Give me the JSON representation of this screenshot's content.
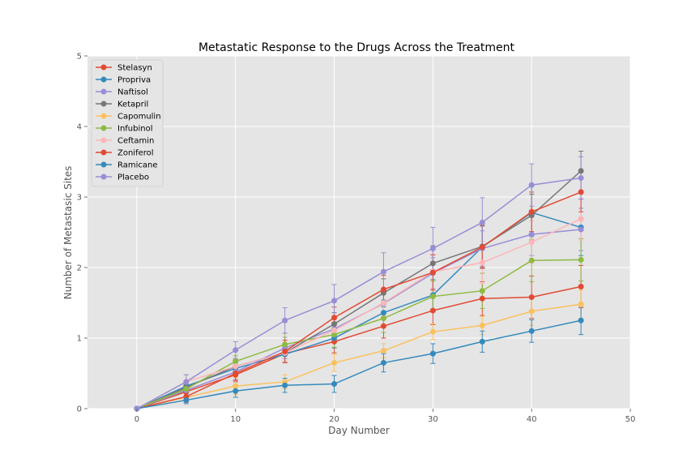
{
  "chart_data": {
    "type": "line",
    "title": "Metastatic Response to the Drugs Across the Treatment",
    "xlabel": "Day Number",
    "ylabel": "Number of Metastasic Sites",
    "xlim": [
      -5,
      50
    ],
    "ylim": [
      0,
      5
    ],
    "xticks": [
      0,
      10,
      20,
      30,
      40,
      50
    ],
    "yticks": [
      0,
      1,
      2,
      3,
      4,
      5
    ],
    "grid": true,
    "legend_position": "top-left",
    "x": [
      0,
      5,
      10,
      15,
      20,
      25,
      30,
      35,
      40,
      45
    ],
    "series": [
      {
        "name": "Stelasyn",
        "color": "#e24a33",
        "values": [
          0,
          0.24,
          0.48,
          0.78,
          0.95,
          1.17,
          1.39,
          1.56,
          1.58,
          1.73
        ],
        "errors": [
          0,
          0.09,
          0.1,
          0.13,
          0.16,
          0.17,
          0.2,
          0.24,
          0.3,
          0.3
        ]
      },
      {
        "name": "Propriva",
        "color": "#348abd",
        "values": [
          0,
          0.32,
          0.57,
          0.77,
          1.0,
          1.36,
          1.61,
          2.29,
          2.78,
          2.57
        ],
        "errors": [
          0,
          0.08,
          0.1,
          0.12,
          0.14,
          0.18,
          0.22,
          0.3,
          0.4,
          0.4
        ]
      },
      {
        "name": "Naftisol",
        "color": "#988ed5",
        "values": [
          0,
          0.26,
          0.52,
          0.86,
          1.13,
          1.49,
          1.92,
          2.27,
          2.47,
          2.54
        ],
        "errors": [
          0,
          0.08,
          0.11,
          0.15,
          0.18,
          0.2,
          0.22,
          0.25,
          0.3,
          0.3
        ]
      },
      {
        "name": "Ketapril",
        "color": "#777777",
        "values": [
          0,
          0.3,
          0.6,
          0.79,
          1.2,
          1.64,
          2.06,
          2.3,
          2.74,
          3.37
        ],
        "errors": [
          0,
          0.09,
          0.1,
          0.12,
          0.16,
          0.2,
          0.25,
          0.3,
          0.3,
          0.28
        ]
      },
      {
        "name": "Capomulin",
        "color": "#fbc15e",
        "values": [
          0,
          0.16,
          0.32,
          0.38,
          0.65,
          0.82,
          1.09,
          1.18,
          1.38,
          1.48
        ],
        "errors": [
          0,
          0.07,
          0.12,
          0.1,
          0.12,
          0.1,
          0.11,
          0.13,
          0.2,
          0.2
        ]
      },
      {
        "name": "Infubinol",
        "color": "#8eba42",
        "values": [
          0,
          0.28,
          0.67,
          0.91,
          1.05,
          1.28,
          1.59,
          1.67,
          2.1,
          2.11
        ],
        "errors": [
          0,
          0.07,
          0.08,
          0.16,
          0.18,
          0.2,
          0.22,
          0.25,
          0.3,
          0.3
        ]
      },
      {
        "name": "Ceftamin",
        "color": "#ffb5b8",
        "values": [
          0,
          0.38,
          0.6,
          0.79,
          1.11,
          1.5,
          1.94,
          2.07,
          2.36,
          2.69
        ],
        "errors": [
          0,
          0.1,
          0.11,
          0.12,
          0.15,
          0.18,
          0.25,
          0.3,
          0.3,
          0.3
        ]
      },
      {
        "name": "Zoniferol",
        "color": "#e24a33",
        "values": [
          0,
          0.17,
          0.5,
          0.81,
          1.29,
          1.69,
          1.93,
          2.29,
          2.79,
          3.07
        ],
        "errors": [
          0,
          0.08,
          0.1,
          0.16,
          0.15,
          0.2,
          0.25,
          0.3,
          0.28,
          0.28
        ]
      },
      {
        "name": "Ramicane",
        "color": "#348abd",
        "values": [
          0,
          0.12,
          0.25,
          0.33,
          0.35,
          0.65,
          0.78,
          0.95,
          1.1,
          1.25
        ],
        "errors": [
          0,
          0.05,
          0.09,
          0.1,
          0.12,
          0.13,
          0.14,
          0.15,
          0.16,
          0.2
        ]
      },
      {
        "name": "Placebo",
        "color": "#988ed5",
        "values": [
          0,
          0.38,
          0.83,
          1.25,
          1.53,
          1.94,
          2.27,
          2.64,
          3.17,
          3.27
        ],
        "errors": [
          0,
          0.1,
          0.12,
          0.18,
          0.23,
          0.27,
          0.3,
          0.35,
          0.3,
          0.3
        ]
      }
    ]
  }
}
